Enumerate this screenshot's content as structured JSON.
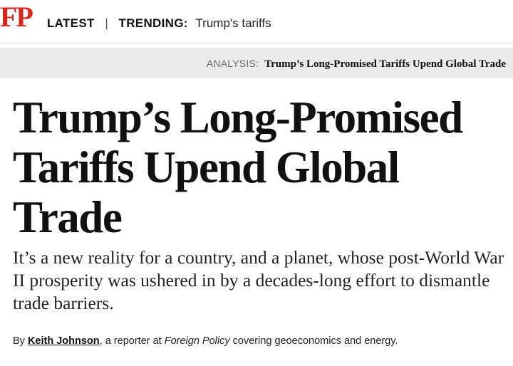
{
  "header": {
    "logo": "FP",
    "nav_latest": "LATEST",
    "separator": "|",
    "trending_label": "TRENDING:",
    "trending_link": "Trump's tariffs"
  },
  "analysis_bar": {
    "label": "ANALYSIS:",
    "title": "Trump’s Long-Promised Tariffs Upend Global Trade"
  },
  "article": {
    "headline": "Trump’s Long-Promised Tariffs Upend Global Trade",
    "dek": "It’s a new reality for a country, and a planet, whose post-World War II prosperity was ushered in by a decades-long effort to dismantle trade barriers.",
    "byline": {
      "prefix": "By",
      "author": "Keith Johnson",
      "text_before_pub": ", a reporter at",
      "publication": "Foreign Policy",
      "text_after_pub": "covering geoeconomics and energy."
    }
  },
  "colors": {
    "brand": "#d9261c",
    "strip_background": "#ebebeb",
    "text": "#111111"
  }
}
